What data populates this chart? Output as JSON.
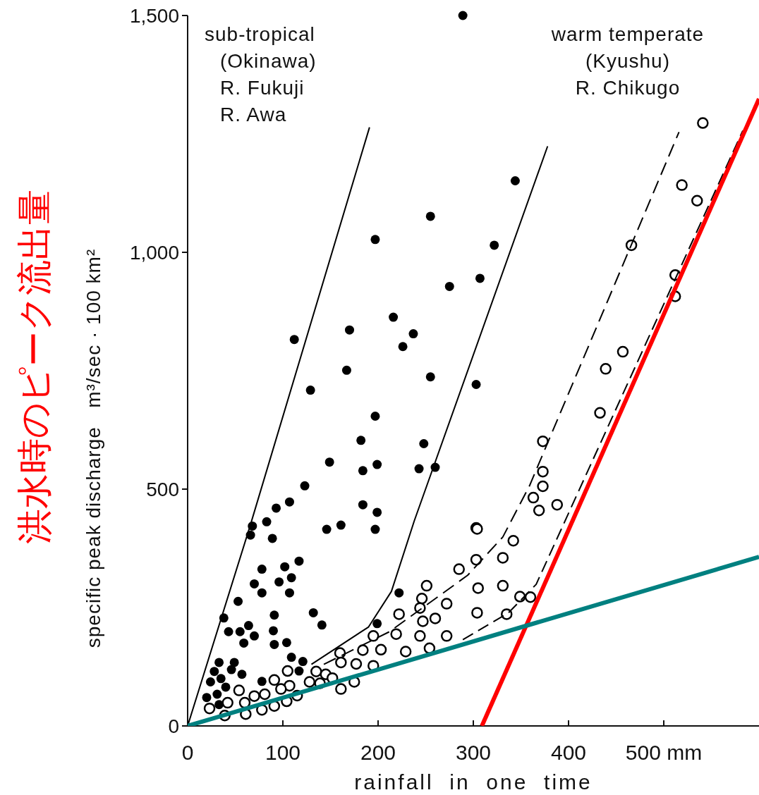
{
  "chart_data": {
    "type": "scatter",
    "xlabel": "rainfall  in  one  time",
    "ylabel": "specific peak discharge   m³/sec · 100 km²",
    "annotations": [
      "sub-tropical\n(Okinawa)\nR. Fukuji\nR. Awa",
      "warm temperate\n(Kyushu)\nR. Chikugo",
      "洪水時のピーク流出量"
    ],
    "xlim": [
      0,
      600
    ],
    "ylim": [
      0,
      1500
    ],
    "xticks": [
      0,
      100,
      200,
      300,
      400,
      {
        "value": 500,
        "label": "500 mm"
      }
    ],
    "yticks": [
      0,
      500,
      {
        "value": 1000,
        "label": "1,000"
      },
      {
        "value": 1500,
        "label": "1,500"
      }
    ],
    "grid": false,
    "series": [
      {
        "type": "scatter",
        "color": "#000000",
        "marker": "circle",
        "x": [
          289,
          344,
          255,
          197,
          322,
          275,
          307,
          216,
          170,
          237,
          226,
          112,
          167,
          255,
          303,
          129,
          197,
          182,
          248,
          149,
          199,
          184,
          243,
          260,
          123,
          107,
          93,
          184,
          199,
          83,
          68,
          146,
          161,
          197,
          66,
          89,
          117,
          78,
          102,
          109,
          96,
          70,
          78,
          107,
          53,
          91,
          132,
          141,
          38,
          64,
          43,
          55,
          90,
          70,
          59,
          91,
          104,
          222,
          199,
          33,
          49,
          109,
          121,
          46,
          28,
          57,
          117,
          35,
          78,
          24,
          40,
          31,
          20,
          33
        ],
        "values": [
          1500,
          1151,
          1076,
          1027,
          1015,
          928,
          945,
          863,
          836,
          828,
          801,
          816,
          751,
          737,
          721,
          709,
          654,
          603,
          596,
          557,
          552,
          539,
          543,
          546,
          507,
          473,
          460,
          467,
          451,
          431,
          422,
          415,
          424,
          415,
          403,
          396,
          348,
          331,
          336,
          313,
          304,
          300,
          281,
          281,
          263,
          234,
          239,
          213,
          228,
          212,
          199,
          199,
          201,
          190,
          175,
          172,
          176,
          281,
          216,
          134,
          134,
          145,
          136,
          119,
          115,
          109,
          116,
          100,
          94,
          93,
          82,
          67,
          60,
          45
        ]
      },
      {
        "type": "scatter",
        "color": "#000000",
        "marker": "circle",
        "x": [
          303,
          303,
          285,
          305,
          251,
          246,
          244,
          272,
          222,
          247,
          260,
          304,
          219,
          244,
          272,
          195,
          203,
          184,
          229,
          254,
          160,
          177,
          195,
          161,
          135,
          145,
          105,
          91,
          128,
          152,
          161,
          175,
          107,
          54,
          70,
          81,
          98,
          139,
          42,
          23,
          60,
          78,
          91,
          104,
          115,
          61,
          39,
          433,
          373,
          373,
          373,
          363,
          369,
          388,
          304,
          342,
          331,
          331,
          335,
          349,
          360,
          541,
          519,
          535,
          466,
          512,
          512,
          457,
          439
        ],
        "values": [
          418,
          351,
          331,
          291,
          296,
          269,
          249,
          258,
          236,
          221,
          227,
          239,
          194,
          190,
          190,
          190,
          161,
          160,
          157,
          164,
          154,
          131,
          127,
          134,
          115,
          109,
          116,
          97,
          93,
          101,
          78,
          93,
          85,
          75,
          63,
          67,
          78,
          90,
          49,
          37,
          49,
          34,
          42,
          52,
          64,
          25,
          22,
          661,
          601,
          537,
          506,
          482,
          455,
          467,
          416,
          391,
          355,
          296,
          236,
          273,
          272,
          1273,
          1142,
          1109,
          1015,
          952,
          907,
          790,
          754
        ]
      },
      {
        "type": "line",
        "color": "#000000",
        "marker": "none",
        "line_style": "solid",
        "x": [
          0,
          66,
          191
        ],
        "values": [
          0,
          425,
          1264
        ]
      },
      {
        "type": "line",
        "color": "#000000",
        "marker": "none",
        "line_style": "solid",
        "x": [
          130,
          190,
          214,
          238,
          378
        ],
        "values": [
          130,
          209,
          284,
          433,
          1224
        ]
      },
      {
        "type": "line",
        "color": "#000000",
        "marker": "none",
        "line_style": "dashed",
        "x": [
          143,
          212,
          294,
          331,
          359,
          516
        ],
        "values": [
          130,
          199,
          318,
          399,
          507,
          1254
        ]
      },
      {
        "type": "line",
        "color": "#000000",
        "marker": "none",
        "line_style": "dashed",
        "x": [
          289,
          337,
          366,
          583
        ],
        "values": [
          182,
          239,
          299,
          1257
        ]
      },
      {
        "type": "line",
        "color": "#ff0000",
        "marker": "none",
        "line_style": "solid",
        "x": [
          309,
          600
        ],
        "values": [
          0,
          1324
        ]
      },
      {
        "type": "line",
        "color": "#008080",
        "marker": "none",
        "line_style": "solid",
        "x": [
          0,
          600
        ],
        "values": [
          0,
          357
        ]
      }
    ]
  }
}
